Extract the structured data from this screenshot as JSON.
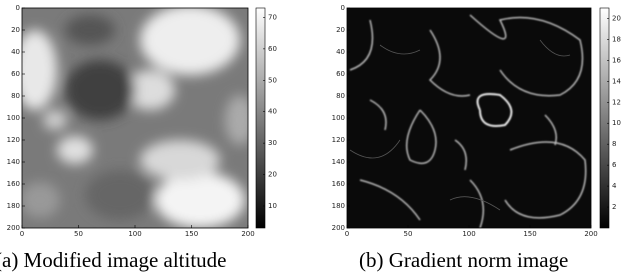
{
  "chart_data": [
    {
      "type": "image",
      "caption": "(a) Modified image altitude",
      "xlim": [
        0,
        200
      ],
      "xticks": [
        0,
        50,
        100,
        150,
        200
      ],
      "ylim": [
        200,
        0
      ],
      "yticks": [
        0,
        20,
        40,
        60,
        80,
        100,
        120,
        140,
        160,
        180,
        200
      ],
      "clim": [
        3,
        73
      ],
      "cticks": [
        10,
        20,
        30,
        40,
        50,
        60,
        70
      ]
    },
    {
      "type": "image",
      "caption": "(b) Gradient norm image",
      "xlim": [
        0,
        200
      ],
      "xticks": [
        0,
        50,
        100,
        150,
        200
      ],
      "ylim": [
        200,
        0
      ],
      "yticks": [
        0,
        20,
        40,
        60,
        80,
        100,
        120,
        140,
        160,
        180,
        200
      ],
      "clim": [
        0,
        21
      ],
      "cticks": [
        2,
        4,
        6,
        8,
        10,
        12,
        14,
        16,
        18,
        20
      ]
    }
  ]
}
